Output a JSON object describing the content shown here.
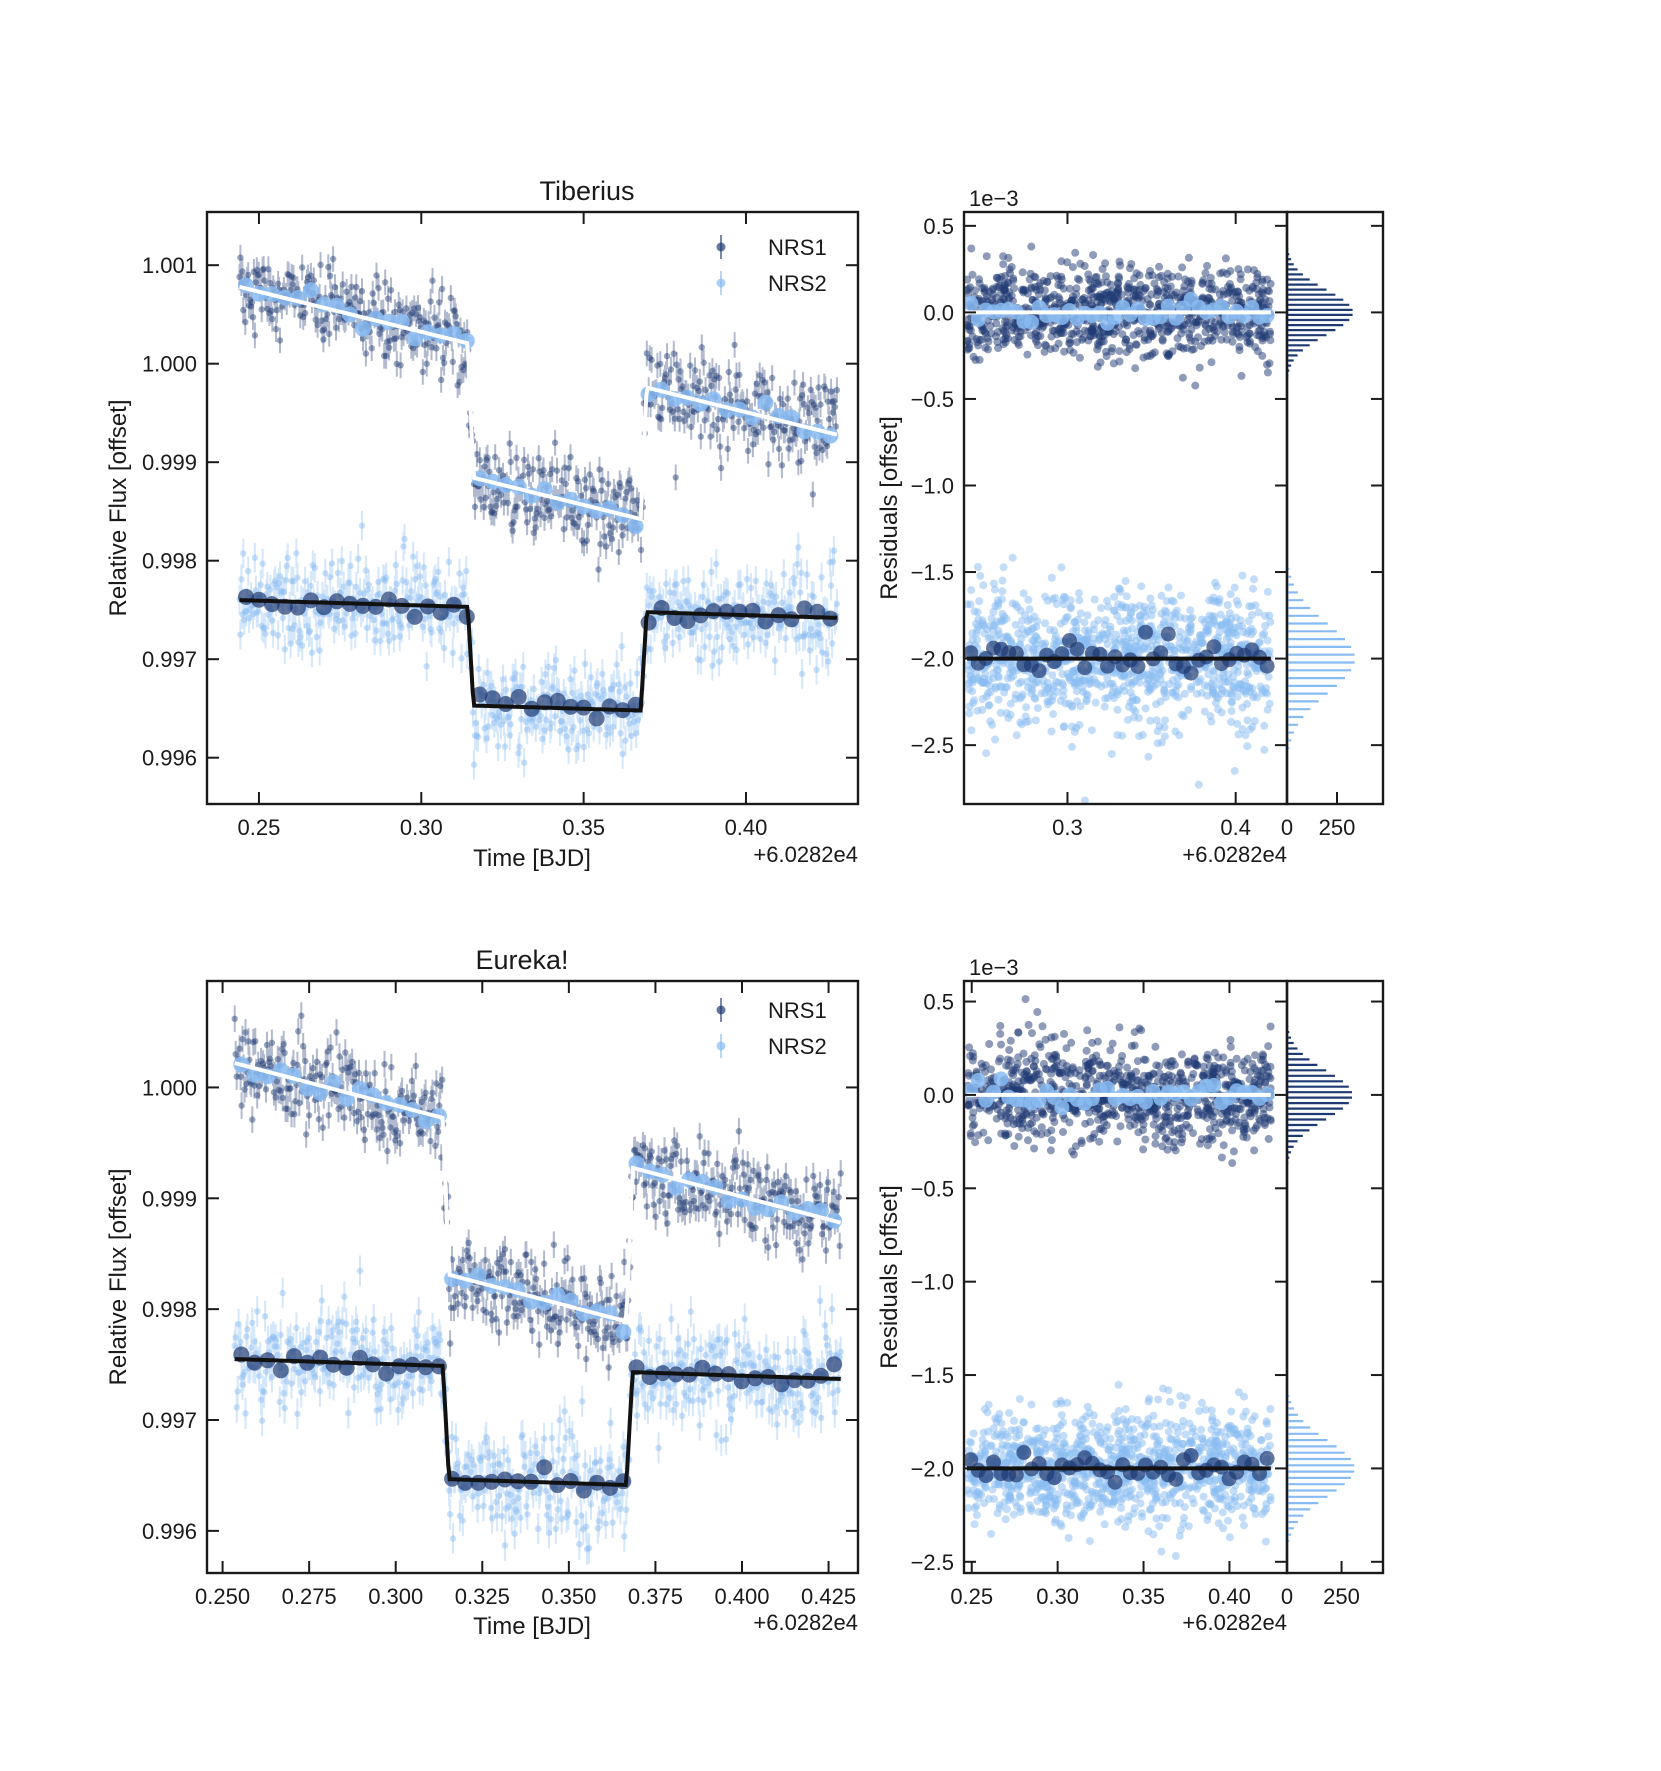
{
  "colors": {
    "nrs1": "#1f3a73",
    "nrs2": "#88bbf2",
    "model_nrs1": "#ffffff",
    "model_nrs2": "#111111",
    "axis": "#1a1a1a"
  },
  "chart_data": [
    {
      "type": "scatter",
      "panel": "light-curve",
      "title": "Tiberius",
      "xlabel": "Time [BJD]",
      "ylabel": "Relative Flux [offset]",
      "x_offset_label": "+6.0282e4",
      "xlim": [
        0.234,
        0.4345
      ],
      "ylim": [
        0.99553,
        1.00154
      ],
      "xticks": [
        0.25,
        0.3,
        0.35,
        0.4
      ],
      "xtick_labels": [
        "0.25",
        "0.30",
        "0.35",
        "0.40"
      ],
      "yticks": [
        0.996,
        0.997,
        0.998,
        0.999,
        1.0,
        1.001
      ],
      "ytick_labels": [
        "0.996",
        "0.997",
        "0.998",
        "0.999",
        "1.000",
        "1.001"
      ],
      "legend": {
        "position": "top-right",
        "entries": [
          "NRS1",
          "NRS2"
        ]
      },
      "series": [
        {
          "name": "NRS1",
          "x_range": [
            0.244,
            0.428
          ],
          "n_points": 620,
          "noise": 0.00021,
          "error": 0.00013,
          "model": {
            "out_start": 1.00078,
            "out_end": 0.99928,
            "transit_start": 0.3152,
            "transit_end": 0.3685,
            "depth": 0.00135,
            "ingress": 0.0018
          }
        },
        {
          "name": "NRS2",
          "x_range": [
            0.244,
            0.428
          ],
          "n_points": 620,
          "noise": 0.00024,
          "error": 0.00015,
          "model": {
            "out_start": 0.9976,
            "out_end": 0.99742,
            "transit_start": 0.3152,
            "transit_end": 0.3685,
            "depth": 0.001,
            "ingress": 0.0018
          }
        }
      ]
    },
    {
      "type": "scatter",
      "panel": "residuals",
      "title": "",
      "ylabel": "Residuals [offset]",
      "scale_label": "1e−3",
      "x_offset_label": "+6.0282e4",
      "xlim": [
        0.2385,
        0.4305
      ],
      "ylim": [
        -2.84,
        0.58
      ],
      "xticks": [
        0.3,
        0.4
      ],
      "xtick_labels": [
        "0.3",
        "0.4"
      ],
      "yticks": [
        0.5,
        0.0,
        -0.5,
        -1.0,
        -1.5,
        -2.0,
        -2.5
      ],
      "ytick_labels": [
        "0.5",
        "0.0",
        "−0.5",
        "−1.0",
        "−1.5",
        "−2.0",
        "−2.5"
      ],
      "series": [
        {
          "name": "NRS1",
          "baseline": 0.0,
          "sigma": 0.13,
          "n_points": 950
        },
        {
          "name": "NRS2",
          "baseline": -2.0,
          "sigma": 0.2,
          "n_points": 1100
        }
      ]
    },
    {
      "type": "bar",
      "panel": "histogram",
      "xlim": [
        0,
        480
      ],
      "xticks": [
        0,
        250
      ],
      "xtick_labels": [
        "0",
        "250"
      ],
      "series": [
        {
          "name": "NRS1",
          "center": 0.0,
          "sigma": 0.13,
          "peak": 330
        },
        {
          "name": "NRS2",
          "center": -2.0,
          "sigma": 0.2,
          "peak": 340
        }
      ]
    },
    {
      "type": "scatter",
      "panel": "light-curve",
      "title": "Eureka!",
      "xlabel": "Time [BJD]",
      "ylabel": "Relative Flux [offset]",
      "x_offset_label": "+6.0282e4",
      "xlim": [
        0.2455,
        0.4335
      ],
      "ylim": [
        0.99562,
        1.00096
      ],
      "xticks": [
        0.25,
        0.275,
        0.3,
        0.325,
        0.35,
        0.375,
        0.4,
        0.425
      ],
      "xtick_labels": [
        "0.250",
        "0.275",
        "0.300",
        "0.325",
        "0.350",
        "0.375",
        "0.400",
        "0.425"
      ],
      "yticks": [
        0.996,
        0.997,
        0.998,
        0.999,
        1.0
      ],
      "ytick_labels": [
        "0.996",
        "0.997",
        "0.998",
        "0.999",
        "1.000"
      ],
      "legend": {
        "position": "top-right",
        "entries": [
          "NRS1",
          "NRS2"
        ]
      },
      "series": [
        {
          "name": "NRS1",
          "x_range": [
            0.2535,
            0.4285
          ],
          "n_points": 620,
          "noise": 0.0002,
          "error": 0.00012,
          "model": {
            "out_start": 1.00022,
            "out_end": 0.99878,
            "transit_start": 0.3145,
            "transit_end": 0.3675,
            "depth": 0.0014,
            "ingress": 0.0018
          }
        },
        {
          "name": "NRS2",
          "x_range": [
            0.2535,
            0.4285
          ],
          "n_points": 620,
          "noise": 0.00022,
          "error": 0.00014,
          "model": {
            "out_start": 0.99755,
            "out_end": 0.99737,
            "transit_start": 0.3145,
            "transit_end": 0.3675,
            "depth": 0.00102,
            "ingress": 0.0018
          }
        }
      ]
    },
    {
      "type": "scatter",
      "panel": "residuals",
      "title": "",
      "ylabel": "Residuals [offset]",
      "scale_label": "1e−3",
      "x_offset_label": "+6.0282e4",
      "xlim": [
        0.2455,
        0.4335
      ],
      "ylim": [
        -2.56,
        0.61
      ],
      "xticks": [
        0.25,
        0.3,
        0.35,
        0.4
      ],
      "xtick_labels": [
        "0.25",
        "0.30",
        "0.35",
        "0.40"
      ],
      "yticks": [
        0.5,
        0.0,
        -0.5,
        -1.0,
        -1.5,
        -2.0,
        -2.5
      ],
      "ytick_labels": [
        "0.5",
        "0.0",
        "−0.5",
        "−1.0",
        "−1.5",
        "−2.0",
        "−2.5"
      ],
      "series": [
        {
          "name": "NRS1",
          "baseline": 0.0,
          "sigma": 0.13,
          "n_points": 950
        },
        {
          "name": "NRS2",
          "baseline": -2.0,
          "sigma": 0.15,
          "n_points": 1100
        }
      ]
    },
    {
      "type": "bar",
      "panel": "histogram",
      "xlim": [
        0,
        440
      ],
      "xticks": [
        0,
        250
      ],
      "xtick_labels": [
        "0",
        "250"
      ],
      "series": [
        {
          "name": "NRS1",
          "center": 0.0,
          "sigma": 0.13,
          "peak": 300
        },
        {
          "name": "NRS2",
          "center": -2.0,
          "sigma": 0.15,
          "peak": 310
        }
      ]
    }
  ]
}
